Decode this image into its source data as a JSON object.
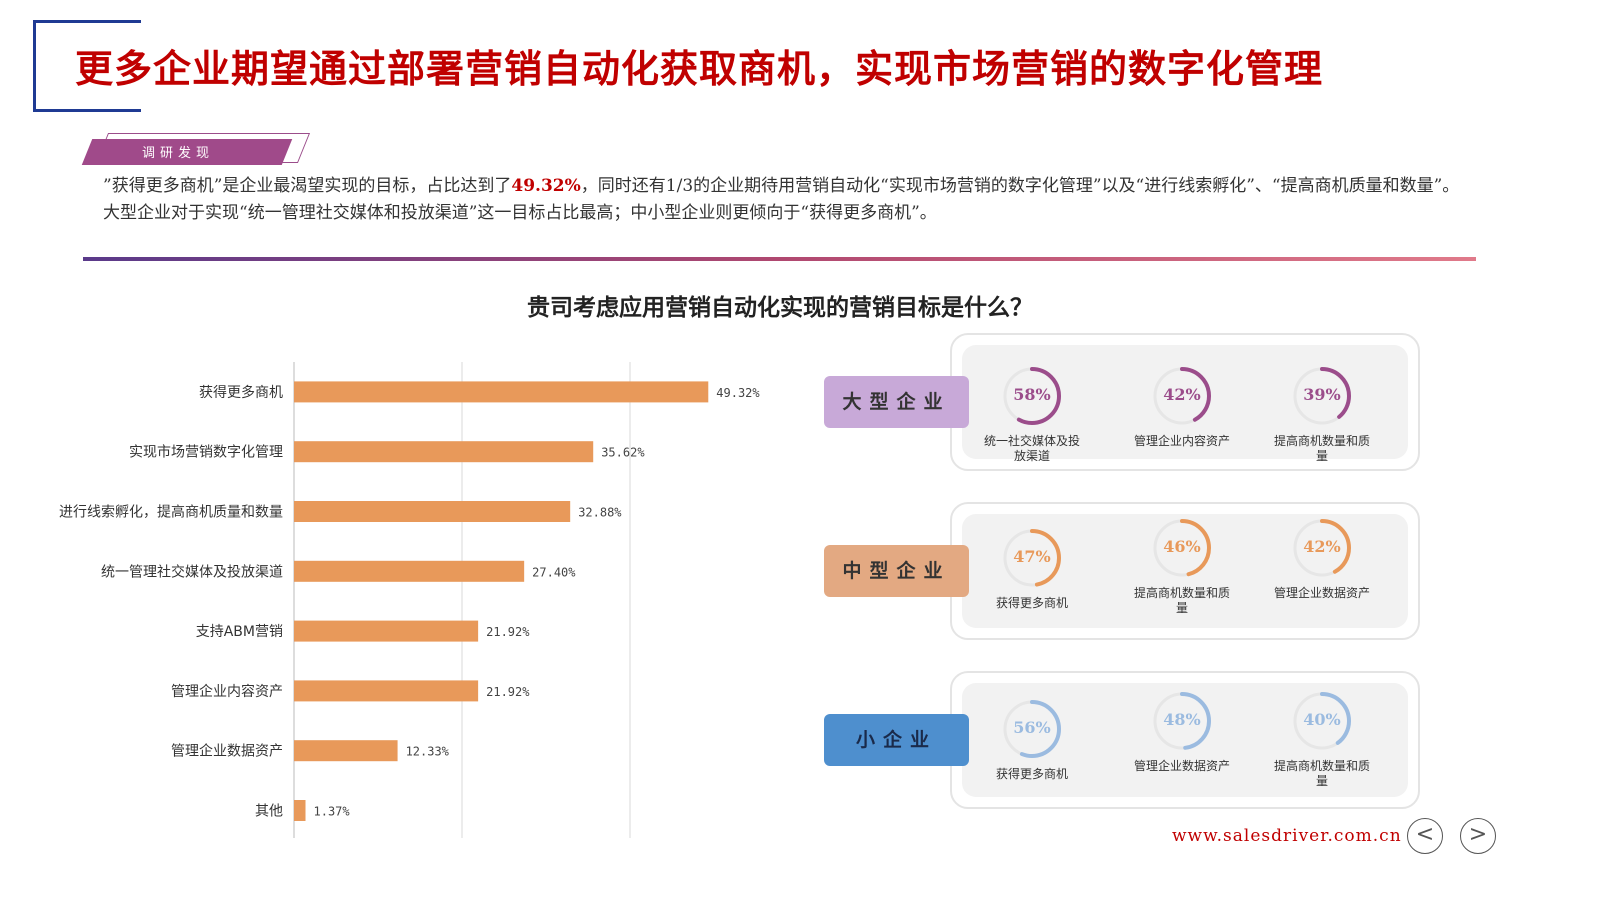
{
  "page_title": "更多企业期望通过部署营销自动化获取商机，实现市场营销的数字化管理",
  "tag": "调研发现",
  "summary": {
    "line1_pre": "”获得更多商机”是企业最渴望实现的目标，占比达到了",
    "line1_highlight": "49.32%",
    "line1_post": "，同时还有1/3的企业期待用营销自动化“实现市场营销的数字化管理”以及“进行线索孵化”、“提高商机质量和数量”。",
    "line2": "大型企业对于实现“统一管理社交媒体和投放渠道”这一目标占比最高；中小型企业则更倾向于“获得更多商机”。"
  },
  "chart_data": {
    "type": "bar",
    "orientation": "horizontal",
    "title": "贵司考虑应用营销自动化实现的营销目标是什么？",
    "categories": [
      "获得更多商机",
      "实现市场营销数字化管理",
      "进行线索孵化，提高商机质量和数量",
      "统一管理社交媒体及投放渠道",
      "支持ABM营销",
      "管理企业内容资产",
      "管理企业数据资产",
      "其他"
    ],
    "values": [
      49.32,
      35.62,
      32.88,
      27.4,
      21.92,
      21.92,
      12.33,
      1.37
    ],
    "value_labels": [
      "49.32%",
      "35.62%",
      "32.88%",
      "27.40%",
      "21.92%",
      "21.92%",
      "12.33%",
      "1.37%"
    ],
    "xlim": [
      0,
      60
    ],
    "grid": true,
    "bar_color": "#e8995a"
  },
  "segments": [
    {
      "label": "大型企业",
      "label_bg": "#c8a9d8",
      "ring_color": "#9b4d8b",
      "items": [
        {
          "value": 58,
          "pct": "58%",
          "caption": "统一社交媒体及投放渠道"
        },
        {
          "value": 42,
          "pct": "42%",
          "caption": "管理企业内容资产"
        },
        {
          "value": 39,
          "pct": "39%",
          "caption": "提高商机数量和质量"
        }
      ]
    },
    {
      "label": "中型企业",
      "label_bg": "#e3a982",
      "ring_color": "#e8995a",
      "items": [
        {
          "value": 47,
          "pct": "47%",
          "caption": "获得更多商机"
        },
        {
          "value": 46,
          "pct": "46%",
          "caption": "提高商机数量和质量"
        },
        {
          "value": 42,
          "pct": "42%",
          "caption": "管理企业数据资产"
        }
      ]
    },
    {
      "label": "小企业",
      "label_bg": "#4e8fce",
      "ring_color": "#9bbbe0",
      "items": [
        {
          "value": 56,
          "pct": "56%",
          "caption": "获得更多商机"
        },
        {
          "value": 48,
          "pct": "48%",
          "caption": "管理企业数据资产"
        },
        {
          "value": 40,
          "pct": "40%",
          "caption": "提高商机数量和质量"
        }
      ]
    }
  ],
  "website": "www.salesdriver.com.cn",
  "nav": {
    "prev": "<",
    "next": ">"
  }
}
